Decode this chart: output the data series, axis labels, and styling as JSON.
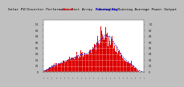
{
  "title": "Solar PV/Inverter Performance East Array   Actual & Running Average Power Output",
  "title_fontsize": 3.2,
  "bg_color": "#c0c0c0",
  "plot_bg_color": "#ffffff",
  "bar_color": "#dd0000",
  "avg_line_color": "#0000cc",
  "grid_color": "#ffffff",
  "text_color": "#000000",
  "axis_label_color": "#000000",
  "legend_actual_color": "#dd0000",
  "legend_avg_color": "#0000cc",
  "n_bars": 180,
  "ylim_max": 1.1
}
